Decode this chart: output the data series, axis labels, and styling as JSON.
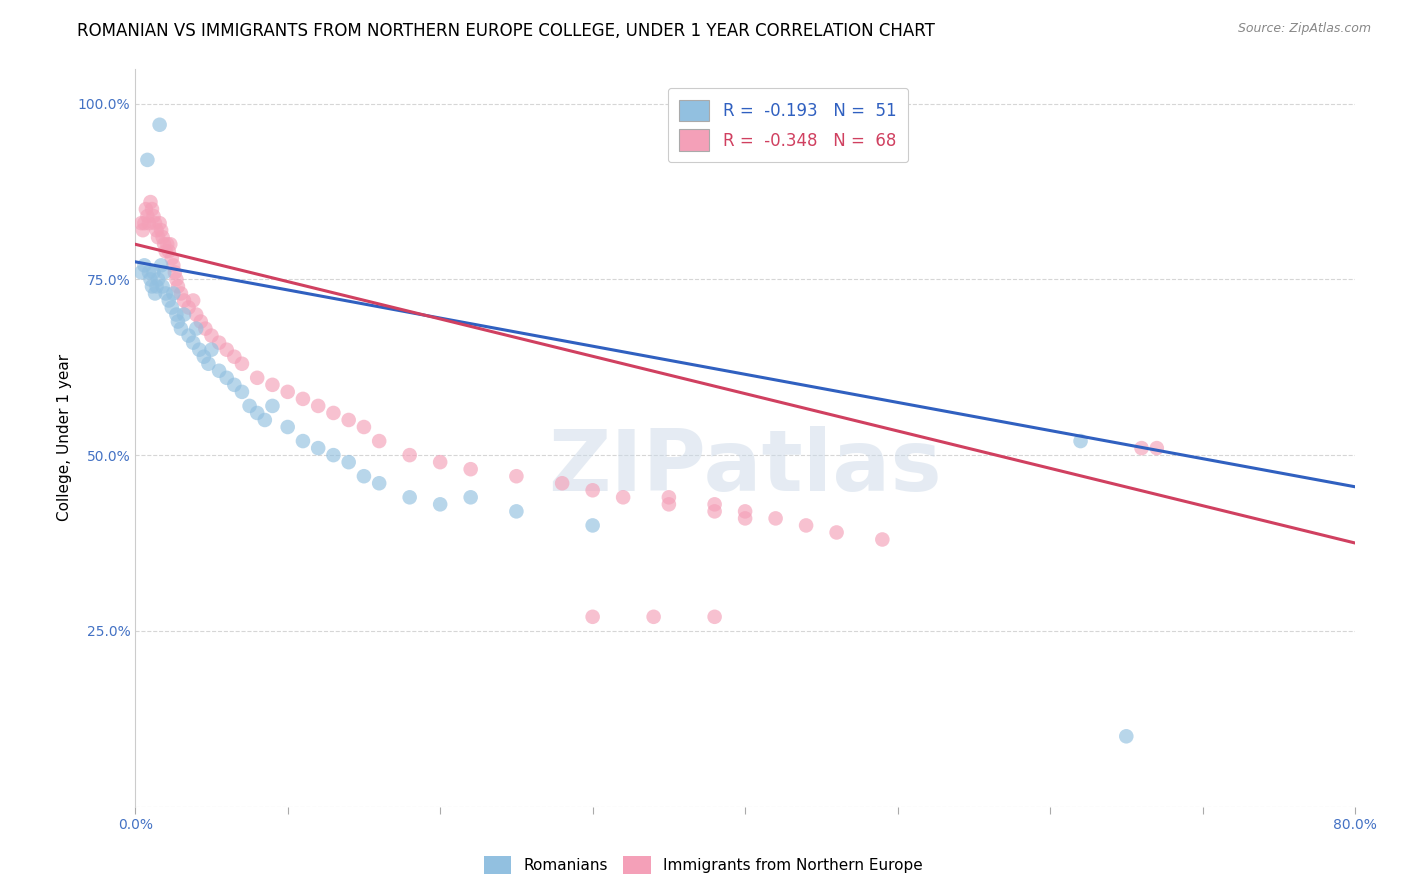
{
  "title": "ROMANIAN VS IMMIGRANTS FROM NORTHERN EUROPE COLLEGE, UNDER 1 YEAR CORRELATION CHART",
  "source": "Source: ZipAtlas.com",
  "ylabel": "College, Under 1 year",
  "xlim": [
    0.0,
    0.8
  ],
  "ylim": [
    0.0,
    1.05
  ],
  "xticks": [
    0.0,
    0.1,
    0.2,
    0.3,
    0.4,
    0.5,
    0.6,
    0.7,
    0.8
  ],
  "xticklabels": [
    "0.0%",
    "",
    "",
    "",
    "",
    "",
    "",
    "",
    "80.0%"
  ],
  "yticks": [
    0.0,
    0.25,
    0.5,
    0.75,
    1.0
  ],
  "yticklabels": [
    "",
    "25.0%",
    "50.0%",
    "75.0%",
    "100.0%"
  ],
  "ytick_color": "#4472c4",
  "xtick_color": "#4472c4",
  "grid_color": "#cccccc",
  "blue_R": -0.193,
  "blue_N": 51,
  "pink_R": -0.348,
  "pink_N": 68,
  "blue_color": "#92c0e0",
  "pink_color": "#f4a0b8",
  "blue_line_color": "#3060c0",
  "pink_line_color": "#d04060",
  "legend_label_blue": "Romanians",
  "legend_label_pink": "Immigrants from Northern Europe",
  "watermark": "ZIPatlas",
  "blue_scatter_x": [
    0.004,
    0.006,
    0.008,
    0.009,
    0.01,
    0.011,
    0.012,
    0.013,
    0.014,
    0.015,
    0.016,
    0.017,
    0.018,
    0.019,
    0.02,
    0.022,
    0.024,
    0.025,
    0.027,
    0.028,
    0.03,
    0.032,
    0.035,
    0.038,
    0.04,
    0.042,
    0.045,
    0.048,
    0.05,
    0.055,
    0.06,
    0.065,
    0.07,
    0.075,
    0.08,
    0.085,
    0.09,
    0.1,
    0.11,
    0.12,
    0.13,
    0.14,
    0.15,
    0.16,
    0.18,
    0.2,
    0.22,
    0.25,
    0.3,
    0.62,
    0.65
  ],
  "blue_scatter_y": [
    0.76,
    0.77,
    0.92,
    0.76,
    0.75,
    0.74,
    0.76,
    0.73,
    0.74,
    0.75,
    0.97,
    0.77,
    0.74,
    0.76,
    0.73,
    0.72,
    0.71,
    0.73,
    0.7,
    0.69,
    0.68,
    0.7,
    0.67,
    0.66,
    0.68,
    0.65,
    0.64,
    0.63,
    0.65,
    0.62,
    0.61,
    0.6,
    0.59,
    0.57,
    0.56,
    0.55,
    0.57,
    0.54,
    0.52,
    0.51,
    0.5,
    0.49,
    0.47,
    0.46,
    0.44,
    0.43,
    0.44,
    0.42,
    0.4,
    0.52,
    0.1
  ],
  "pink_scatter_x": [
    0.004,
    0.005,
    0.006,
    0.007,
    0.008,
    0.009,
    0.01,
    0.011,
    0.012,
    0.013,
    0.014,
    0.015,
    0.016,
    0.017,
    0.018,
    0.019,
    0.02,
    0.021,
    0.022,
    0.023,
    0.024,
    0.025,
    0.026,
    0.027,
    0.028,
    0.03,
    0.032,
    0.035,
    0.038,
    0.04,
    0.043,
    0.046,
    0.05,
    0.055,
    0.06,
    0.065,
    0.07,
    0.08,
    0.09,
    0.1,
    0.11,
    0.12,
    0.13,
    0.14,
    0.15,
    0.16,
    0.18,
    0.2,
    0.22,
    0.25,
    0.28,
    0.3,
    0.32,
    0.35,
    0.38,
    0.4,
    0.35,
    0.38,
    0.4,
    0.42,
    0.44,
    0.46,
    0.49,
    0.3,
    0.34,
    0.38,
    0.66,
    0.67
  ],
  "pink_scatter_y": [
    0.83,
    0.82,
    0.83,
    0.85,
    0.84,
    0.83,
    0.86,
    0.85,
    0.84,
    0.83,
    0.82,
    0.81,
    0.83,
    0.82,
    0.81,
    0.8,
    0.79,
    0.8,
    0.79,
    0.8,
    0.78,
    0.77,
    0.76,
    0.75,
    0.74,
    0.73,
    0.72,
    0.71,
    0.72,
    0.7,
    0.69,
    0.68,
    0.67,
    0.66,
    0.65,
    0.64,
    0.63,
    0.61,
    0.6,
    0.59,
    0.58,
    0.57,
    0.56,
    0.55,
    0.54,
    0.52,
    0.5,
    0.49,
    0.48,
    0.47,
    0.46,
    0.45,
    0.44,
    0.43,
    0.42,
    0.41,
    0.44,
    0.43,
    0.42,
    0.41,
    0.4,
    0.39,
    0.38,
    0.27,
    0.27,
    0.27,
    0.51,
    0.51
  ],
  "blue_trendline_x": [
    0.0,
    0.8
  ],
  "blue_trendline_y": [
    0.775,
    0.455
  ],
  "pink_trendline_x": [
    0.0,
    0.8
  ],
  "pink_trendline_y": [
    0.8,
    0.375
  ],
  "marker_size": 110,
  "title_fontsize": 12,
  "axis_label_fontsize": 11,
  "tick_fontsize": 10,
  "legend_fontsize": 11
}
